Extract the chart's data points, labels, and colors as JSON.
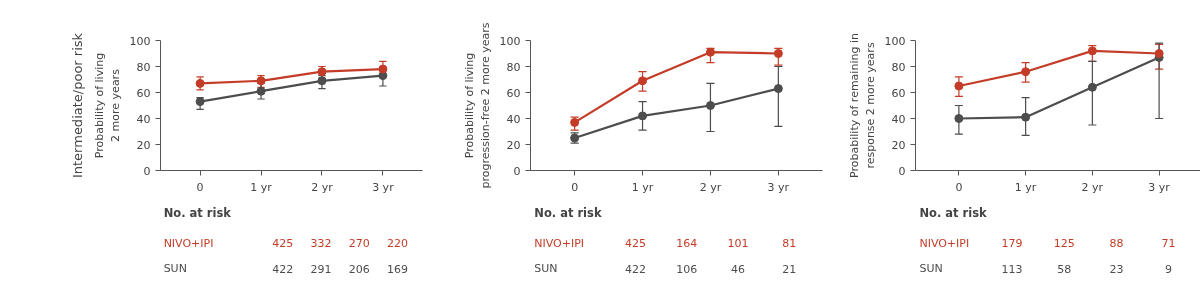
{
  "chart_data": [
    {
      "type": "line",
      "title": "Intermediate/poor risk",
      "ylabel": "Probability of living\n2 more years",
      "categories": [
        "0",
        "1 yr",
        "2 yr",
        "3 yr"
      ],
      "ylim": [
        0,
        100
      ],
      "yticks": [
        0,
        20,
        40,
        60,
        80,
        100
      ],
      "grid": false,
      "legend": false,
      "marker": "circle",
      "series": [
        {
          "name": "NIVO+IPI",
          "color": "#c43c27",
          "values": [
            67,
            69,
            76,
            78
          ],
          "errors": [
            [
              62,
              72
            ],
            [
              64,
              73
            ],
            [
              71,
              80
            ],
            [
              73,
              84
            ]
          ]
        },
        {
          "name": "SUN",
          "color": "#4d4d4d",
          "values": [
            53,
            61,
            69,
            73
          ],
          "errors": [
            [
              47,
              56
            ],
            [
              55,
              67
            ],
            [
              63,
              73
            ],
            [
              65,
              77
            ]
          ]
        }
      ],
      "annotations": [
        "No. at risk",
        "425",
        "332",
        "270",
        "220",
        "422",
        "291",
        "206",
        "169"
      ]
    },
    {
      "type": "line",
      "ylabel": "Probability of living\nprogression-free 2 more years",
      "categories": [
        "0",
        "1 yr",
        "2 yr",
        "3 yr"
      ],
      "ylim": [
        0,
        100
      ],
      "yticks": [
        0,
        20,
        40,
        60,
        80,
        100
      ],
      "grid": false,
      "legend": false,
      "marker": "circle",
      "series": [
        {
          "name": "NIVO+IPI",
          "color": "#c43c27",
          "values": [
            37,
            69,
            91,
            90
          ],
          "errors": [
            [
              31,
              41
            ],
            [
              61,
              76
            ],
            [
              83,
              94
            ],
            [
              81,
              94
            ]
          ]
        },
        {
          "name": "SUN",
          "color": "#4d4d4d",
          "values": [
            25,
            42,
            50,
            63
          ],
          "errors": [
            [
              21,
              29
            ],
            [
              31,
              53
            ],
            [
              30,
              67
            ],
            [
              34,
              80
            ]
          ]
        }
      ],
      "annotations": [
        "No. at risk",
        "425",
        "164",
        "101",
        "81",
        "422",
        "106",
        "46",
        "21"
      ]
    },
    {
      "type": "line",
      "ylabel": "Probability of remaining in\nresponse 2 more years",
      "categories": [
        "0",
        "1 yr",
        "2 yr",
        "3 yr"
      ],
      "ylim": [
        0,
        100
      ],
      "yticks": [
        0,
        20,
        40,
        60,
        80,
        100
      ],
      "grid": false,
      "legend": false,
      "marker": "circle",
      "series": [
        {
          "name": "NIVO+IPI",
          "color": "#c43c27",
          "values": [
            65,
            76,
            92,
            90
          ],
          "errors": [
            [
              57,
              72
            ],
            [
              68,
              83
            ],
            [
              84,
              96
            ],
            [
              78,
              97
            ]
          ]
        },
        {
          "name": "SUN",
          "color": "#4d4d4d",
          "values": [
            40,
            41,
            64,
            87
          ],
          "errors": [
            [
              28,
              50
            ],
            [
              27,
              56
            ],
            [
              35,
              84
            ],
            [
              40,
              98
            ]
          ]
        }
      ],
      "annotations": [
        "No. at risk",
        "179",
        "125",
        "88",
        "71",
        "113",
        "58",
        "23",
        "9"
      ]
    }
  ]
}
